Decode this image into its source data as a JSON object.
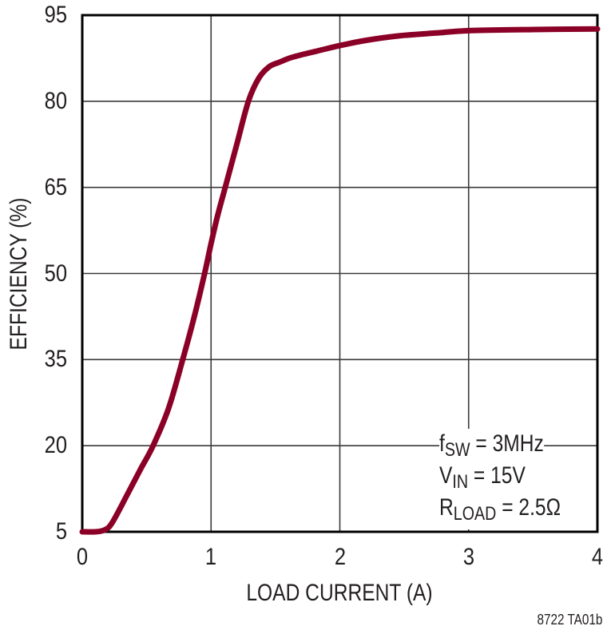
{
  "chart_data": {
    "type": "line",
    "title": "",
    "xlabel": "LOAD CURRENT (A)",
    "ylabel": "EFFICIENCY (%)",
    "xlim": [
      0,
      4
    ],
    "ylim": [
      5,
      95
    ],
    "x_ticks": [
      "0",
      "1",
      "2",
      "3",
      "4"
    ],
    "y_ticks": [
      "5",
      "20",
      "35",
      "50",
      "65",
      "80",
      "95"
    ],
    "grid": true,
    "legend": null,
    "annotations": [
      "fSW = 3MHz",
      "VIN = 15V",
      "RLOAD = 2.5Ω"
    ],
    "figure_id": "8722 TA01b",
    "line_color": "#8b0026",
    "series": [
      {
        "name": "Efficiency",
        "x": [
          0,
          0.1,
          0.17,
          0.23,
          0.35,
          0.45,
          0.55,
          0.67,
          0.78,
          0.87,
          0.95,
          1.0,
          1.05,
          1.11,
          1.2,
          1.29,
          1.37,
          1.45,
          1.53,
          1.62,
          1.72,
          1.85,
          2.0,
          2.2,
          2.46,
          2.75,
          3.0,
          3.5,
          4.0
        ],
        "y": [
          5.0,
          5.0,
          5.3,
          6.5,
          11.5,
          15.8,
          20.0,
          26.5,
          35.0,
          42.5,
          50.0,
          55.2,
          60.0,
          65.0,
          72.5,
          80.0,
          84.0,
          86.0,
          86.8,
          87.6,
          88.2,
          88.9,
          89.7,
          90.6,
          91.4,
          91.9,
          92.3,
          92.5,
          92.6
        ]
      }
    ]
  },
  "axes": {
    "y_title": "EFFICIENCY (%)",
    "x_title": "LOAD CURRENT (A)",
    "y_ticks": [
      "95",
      "80",
      "65",
      "50",
      "35",
      "20",
      "5"
    ],
    "x_ticks": [
      "0",
      "1",
      "2",
      "3",
      "4"
    ]
  },
  "annotation": {
    "line1": {
      "main": "f",
      "sub": "SW",
      "rest": " = 3MHz"
    },
    "line2": {
      "main": "V",
      "sub": "IN",
      "rest": " = 15V"
    },
    "line3": {
      "main": "R",
      "sub": "LOAD",
      "rest": " = 2.5Ω"
    }
  },
  "figure_id": "8722 TA01b"
}
